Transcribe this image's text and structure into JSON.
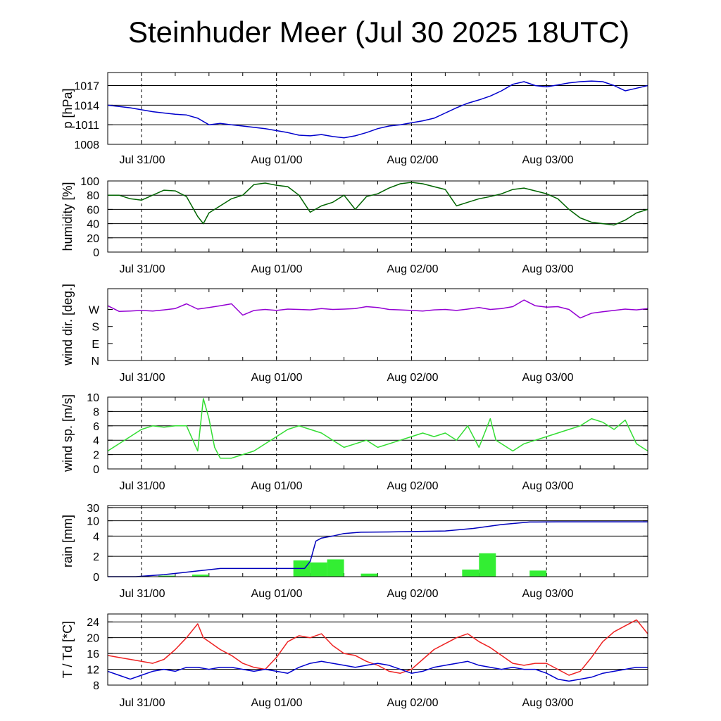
{
  "title": "Steinhuder Meer (Jul 30 2025 18UTC)",
  "colors": {
    "pressure": "#0000cc",
    "humidity": "#006400",
    "wind_dir": "#9400d3",
    "wind_speed": "#33dd33",
    "rain_bars": "#33ee33",
    "rain_line": "#0000bb",
    "temperature": "#ee2222",
    "dewpoint": "#0000cc"
  },
  "chart_data": [
    {
      "type": "line",
      "ylabel": "p [hPa]",
      "x_unit": "hours since Jul 30 18UTC",
      "x_range": [
        0,
        96
      ],
      "x_ticks": [
        "Jul 31/00",
        "Aug 01/00",
        "Aug 02/00",
        "Aug 03/00"
      ],
      "ylim": [
        1008,
        1019
      ],
      "yticks": [
        "1008",
        "1011",
        "1014",
        "1017"
      ],
      "grid": true,
      "series": [
        {
          "color_key": "pressure",
          "x": [
            0,
            2,
            4,
            6,
            8,
            10,
            12,
            14,
            16,
            18,
            20,
            22,
            24,
            26,
            28,
            30,
            32,
            34,
            36,
            38,
            40,
            42,
            44,
            46,
            48,
            50,
            52,
            54,
            56,
            58,
            60,
            62,
            64,
            66,
            68,
            70,
            72,
            74,
            76,
            78,
            80,
            82,
            84,
            86,
            88,
            90,
            92,
            94,
            96
          ],
          "y": [
            1014.0,
            1013.8,
            1013.6,
            1013.3,
            1013.0,
            1012.8,
            1012.6,
            1012.5,
            1012.0,
            1011.0,
            1011.2,
            1011.0,
            1010.8,
            1010.6,
            1010.4,
            1010.1,
            1009.8,
            1009.4,
            1009.3,
            1009.5,
            1009.2,
            1009.0,
            1009.3,
            1009.8,
            1010.4,
            1010.8,
            1011.0,
            1011.3,
            1011.6,
            1012.0,
            1012.8,
            1013.6,
            1014.3,
            1014.8,
            1015.4,
            1016.2,
            1017.2,
            1017.6,
            1017.0,
            1016.8,
            1017.1,
            1017.4,
            1017.6,
            1017.7,
            1017.6,
            1017.0,
            1016.2,
            1016.6,
            1017.0
          ]
        }
      ]
    },
    {
      "type": "line",
      "ylabel": "humidity [%]",
      "x_unit": "hours since Jul 30 18UTC",
      "x_range": [
        0,
        96
      ],
      "x_ticks": [
        "Jul 31/00",
        "Aug 01/00",
        "Aug 02/00",
        "Aug 03/00"
      ],
      "ylim": [
        0,
        100
      ],
      "yticks": [
        "0",
        "20",
        "40",
        "60",
        "80",
        "100"
      ],
      "grid": true,
      "series": [
        {
          "color_key": "humidity",
          "x": [
            0,
            2,
            4,
            6,
            8,
            10,
            12,
            14,
            16,
            17,
            18,
            20,
            22,
            24,
            26,
            28,
            30,
            32,
            34,
            36,
            38,
            40,
            42,
            44,
            46,
            48,
            50,
            52,
            54,
            56,
            58,
            60,
            62,
            64,
            66,
            68,
            70,
            72,
            74,
            76,
            78,
            80,
            82,
            84,
            86,
            88,
            90,
            92,
            94,
            96
          ],
          "y": [
            80,
            80,
            75,
            73,
            80,
            87,
            86,
            78,
            50,
            40,
            55,
            65,
            75,
            80,
            95,
            97,
            94,
            92,
            80,
            56,
            65,
            70,
            80,
            60,
            78,
            82,
            90,
            96,
            98,
            96,
            92,
            88,
            65,
            70,
            75,
            78,
            82,
            88,
            90,
            86,
            82,
            75,
            60,
            48,
            42,
            40,
            38,
            45,
            55,
            60
          ]
        }
      ]
    },
    {
      "type": "line",
      "ylabel": "wind dir. [deg.]",
      "x_unit": "hours since Jul 30 18UTC",
      "x_range": [
        0,
        96
      ],
      "x_ticks": [
        "Jul 31/00",
        "Aug 01/00",
        "Aug 02/00",
        "Aug 03/00"
      ],
      "ylim": [
        0,
        380
      ],
      "yticks": [
        "N",
        "E",
        "S",
        "W"
      ],
      "ytick_values": [
        0,
        90,
        180,
        270
      ],
      "grid": false,
      "series": [
        {
          "color_key": "wind_dir",
          "x": [
            0,
            2,
            4,
            6,
            8,
            10,
            12,
            14,
            16,
            18,
            20,
            22,
            24,
            26,
            28,
            30,
            32,
            34,
            36,
            38,
            40,
            42,
            44,
            46,
            48,
            50,
            52,
            54,
            56,
            58,
            60,
            62,
            64,
            66,
            68,
            70,
            72,
            74,
            76,
            78,
            80,
            82,
            84,
            86,
            88,
            90,
            92,
            94,
            96
          ],
          "y": [
            290,
            260,
            262,
            265,
            262,
            268,
            275,
            300,
            272,
            280,
            290,
            300,
            240,
            265,
            270,
            265,
            272,
            270,
            268,
            275,
            270,
            272,
            275,
            285,
            280,
            270,
            268,
            265,
            262,
            268,
            270,
            265,
            272,
            280,
            270,
            275,
            285,
            320,
            290,
            282,
            285,
            270,
            225,
            250,
            258,
            265,
            272,
            268,
            275
          ]
        }
      ]
    },
    {
      "type": "line",
      "ylabel": "wind sp. [m/s]",
      "x_unit": "hours since Jul 30 18UTC",
      "x_range": [
        0,
        96
      ],
      "x_ticks": [
        "Jul 31/00",
        "Aug 01/00",
        "Aug 02/00",
        "Aug 03/00"
      ],
      "ylim": [
        0,
        10
      ],
      "yticks": [
        "0",
        "2",
        "4",
        "6",
        "8",
        "10"
      ],
      "grid": true,
      "series": [
        {
          "color_key": "wind_speed",
          "x": [
            0,
            2,
            4,
            6,
            8,
            10,
            12,
            14,
            16,
            17,
            18,
            19,
            20,
            22,
            24,
            26,
            28,
            30,
            32,
            34,
            36,
            38,
            40,
            42,
            44,
            46,
            48,
            50,
            52,
            54,
            56,
            58,
            60,
            62,
            64,
            66,
            68,
            69,
            70,
            71,
            72,
            74,
            76,
            78,
            80,
            82,
            84,
            86,
            88,
            90,
            92,
            94,
            96
          ],
          "y": [
            2.5,
            3.5,
            4.5,
            5.5,
            6.0,
            5.8,
            6.0,
            6.0,
            2.5,
            9.8,
            7.0,
            3.0,
            1.5,
            1.5,
            2.0,
            2.5,
            3.5,
            4.5,
            5.5,
            6.0,
            5.5,
            5.0,
            4.0,
            3.0,
            3.5,
            4.0,
            3.0,
            3.5,
            4.0,
            4.5,
            5.0,
            4.5,
            5.0,
            4.0,
            6.0,
            3.0,
            7.0,
            4.0,
            3.5,
            3.0,
            2.5,
            3.5,
            4.0,
            4.5,
            5.0,
            5.5,
            6.0,
            7.0,
            6.5,
            5.5,
            6.8,
            3.5,
            2.5
          ]
        }
      ]
    },
    {
      "type": "bar+line",
      "ylabel": "rain [mm]",
      "x_unit": "hours since Jul 30 18UTC",
      "x_range": [
        0,
        96
      ],
      "x_ticks": [
        "Jul 31/00",
        "Aug 01/00",
        "Aug 02/00",
        "Aug 03/00"
      ],
      "ylim": [
        0,
        30
      ],
      "yticks": [
        "0",
        "2",
        "4",
        "10",
        "30"
      ],
      "ytick_values": [
        0,
        2,
        4,
        10,
        30
      ],
      "scale": "nonlinear",
      "grid": true,
      "bars": {
        "color_key": "rain_bars",
        "x_start": [
          9,
          15,
          33,
          36,
          39,
          45,
          63,
          66,
          75
        ],
        "x_end": [
          12,
          18,
          36,
          39,
          42,
          48,
          66,
          69,
          78
        ],
        "values": [
          0.1,
          0.2,
          1.6,
          1.4,
          1.7,
          0.3,
          0.7,
          2.3,
          0.6
        ]
      },
      "series": [
        {
          "color_key": "rain_line",
          "x": [
            0,
            5,
            10,
            15,
            20,
            25,
            30,
            35,
            36,
            37,
            38,
            40,
            42,
            45,
            50,
            55,
            60,
            65,
            70,
            75,
            80,
            85,
            90,
            96
          ],
          "y": [
            0,
            0,
            0.2,
            0.5,
            0.8,
            0.8,
            0.8,
            0.8,
            1.5,
            3.5,
            3.8,
            4.0,
            5.0,
            5.5,
            5.6,
            5.8,
            6.0,
            7.0,
            8.5,
            9.5,
            9.6,
            9.6,
            9.6,
            9.6
          ]
        }
      ]
    },
    {
      "type": "line",
      "ylabel": "T / Td [*C]",
      "x_unit": "hours since Jul 30 18UTC",
      "x_range": [
        0,
        96
      ],
      "x_ticks": [
        "Jul 31/00",
        "Aug 01/00",
        "Aug 02/00",
        "Aug 03/00"
      ],
      "ylim": [
        8,
        26
      ],
      "yticks": [
        "8",
        "12",
        "16",
        "20",
        "24"
      ],
      "grid": true,
      "series": [
        {
          "color_key": "temperature",
          "x": [
            0,
            2,
            4,
            6,
            8,
            10,
            12,
            14,
            16,
            17,
            18,
            20,
            22,
            24,
            26,
            28,
            30,
            32,
            34,
            36,
            38,
            40,
            42,
            44,
            46,
            48,
            50,
            52,
            54,
            56,
            58,
            60,
            62,
            64,
            66,
            68,
            70,
            72,
            74,
            76,
            78,
            80,
            82,
            84,
            86,
            88,
            90,
            92,
            94,
            96
          ],
          "y": [
            15.5,
            15.0,
            14.5,
            14.0,
            13.5,
            14.5,
            17.0,
            20.0,
            23.5,
            20.0,
            19.0,
            17.0,
            15.5,
            13.5,
            12.5,
            12.0,
            15.0,
            19.0,
            20.5,
            20.0,
            21.0,
            18.0,
            16.0,
            15.5,
            14.0,
            13.0,
            11.5,
            11.0,
            12.0,
            14.5,
            17.0,
            18.5,
            20.0,
            21.0,
            19.0,
            17.5,
            15.5,
            13.5,
            13.0,
            13.5,
            13.5,
            12.0,
            10.5,
            11.5,
            15.0,
            19.0,
            21.5,
            23.0,
            24.5,
            21.0
          ]
        },
        {
          "color_key": "dewpoint",
          "x": [
            0,
            2,
            4,
            6,
            8,
            10,
            12,
            14,
            16,
            18,
            20,
            22,
            24,
            26,
            28,
            30,
            32,
            34,
            36,
            38,
            40,
            42,
            44,
            46,
            48,
            50,
            52,
            54,
            56,
            58,
            60,
            62,
            64,
            66,
            68,
            70,
            72,
            74,
            76,
            78,
            80,
            82,
            84,
            86,
            88,
            90,
            92,
            94,
            96
          ],
          "y": [
            11.5,
            10.5,
            9.5,
            10.5,
            11.5,
            12.0,
            11.5,
            12.5,
            12.5,
            12.0,
            12.5,
            12.5,
            12.0,
            11.5,
            12.0,
            11.5,
            11.0,
            12.5,
            13.5,
            14.0,
            13.5,
            13.0,
            12.5,
            13.0,
            13.5,
            13.0,
            12.0,
            11.0,
            11.5,
            12.5,
            13.0,
            13.5,
            14.0,
            13.0,
            12.5,
            12.0,
            12.5,
            12.0,
            12.0,
            11.0,
            9.5,
            9.0,
            9.5,
            10.0,
            11.0,
            11.5,
            12.0,
            12.5,
            12.5
          ]
        }
      ]
    }
  ]
}
